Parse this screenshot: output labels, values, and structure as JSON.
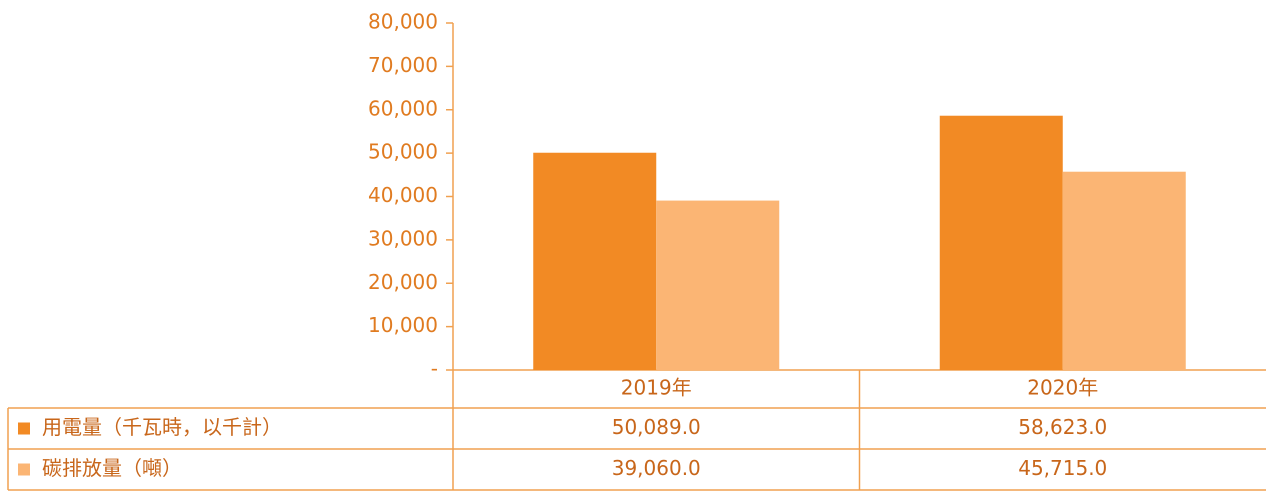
{
  "chart_data": {
    "type": "bar",
    "categories": [
      "2019年",
      "2020年"
    ],
    "series": [
      {
        "name": "用電量（千瓦時，以千計）",
        "color": "#f28a24",
        "values": [
          50089,
          58623
        ],
        "value_labels": [
          "50,089.0",
          "58,623.0"
        ]
      },
      {
        "name": "碳排放量（噸）",
        "color": "#fbb574",
        "values": [
          39060,
          45715
        ],
        "value_labels": [
          "39,060.0",
          "45,715.0"
        ]
      }
    ],
    "ylim": [
      0,
      80000
    ],
    "yticks": [
      {
        "value": 0,
        "label": "-"
      },
      {
        "value": 10000,
        "label": "10,000"
      },
      {
        "value": 20000,
        "label": "20,000"
      },
      {
        "value": 30000,
        "label": "30,000"
      },
      {
        "value": 40000,
        "label": "40,000"
      },
      {
        "value": 50000,
        "label": "50,000"
      },
      {
        "value": 60000,
        "label": "60,000"
      },
      {
        "value": 70000,
        "label": "70,000"
      },
      {
        "value": 80000,
        "label": "80,000"
      }
    ]
  }
}
